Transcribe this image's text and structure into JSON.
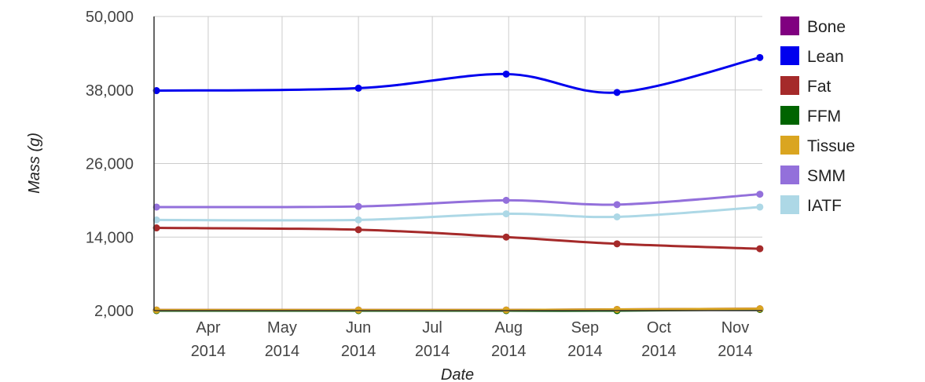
{
  "chart_data": {
    "type": "line",
    "xlabel": "Date",
    "ylabel": "Mass (g)",
    "ylim": [
      2000,
      50000
    ],
    "yticks": [
      "2,000",
      "14,000",
      "26,000",
      "38,000",
      "50,000"
    ],
    "ytick_values": [
      2000,
      14000,
      26000,
      38000,
      50000
    ],
    "xlim": [
      "2014-03-10",
      "2014-11-12"
    ],
    "xticks": [
      {
        "date": "2014-04-01",
        "month": "Apr",
        "year": "2014"
      },
      {
        "date": "2014-05-01",
        "month": "May",
        "year": "2014"
      },
      {
        "date": "2014-06-01",
        "month": "Jun",
        "year": "2014"
      },
      {
        "date": "2014-07-01",
        "month": "Jul",
        "year": "2014"
      },
      {
        "date": "2014-08-01",
        "month": "Aug",
        "year": "2014"
      },
      {
        "date": "2014-09-01",
        "month": "Sep",
        "year": "2014"
      },
      {
        "date": "2014-10-01",
        "month": "Oct",
        "year": "2014"
      },
      {
        "date": "2014-11-01",
        "month": "Nov",
        "year": "2014"
      }
    ],
    "grid": true,
    "legend_position": "right",
    "x": [
      "2014-03-11",
      "2014-06-01",
      "2014-07-31",
      "2014-09-14",
      "2014-11-11"
    ],
    "series": [
      {
        "name": "Bone",
        "color": "#800080",
        "values": [
          2100,
          2100,
          2100,
          2200,
          2300
        ]
      },
      {
        "name": "Lean",
        "color": "#0000ee",
        "values": [
          37900,
          38300,
          40600,
          37600,
          43300
        ]
      },
      {
        "name": "Fat",
        "color": "#a52a2a",
        "values": [
          15500,
          15200,
          14000,
          12900,
          12100
        ]
      },
      {
        "name": "FFM",
        "color": "#006400",
        "values": [
          2000,
          2000,
          2000,
          2000,
          2200
        ]
      },
      {
        "name": "Tissue",
        "color": "#daa520",
        "values": [
          2100,
          2100,
          2100,
          2200,
          2300
        ]
      },
      {
        "name": "SMM",
        "color": "#9370db",
        "values": [
          18900,
          19000,
          20000,
          19300,
          21000
        ]
      },
      {
        "name": "IATF",
        "color": "#add8e6",
        "values": [
          16800,
          16800,
          17800,
          17300,
          18900
        ]
      }
    ]
  }
}
